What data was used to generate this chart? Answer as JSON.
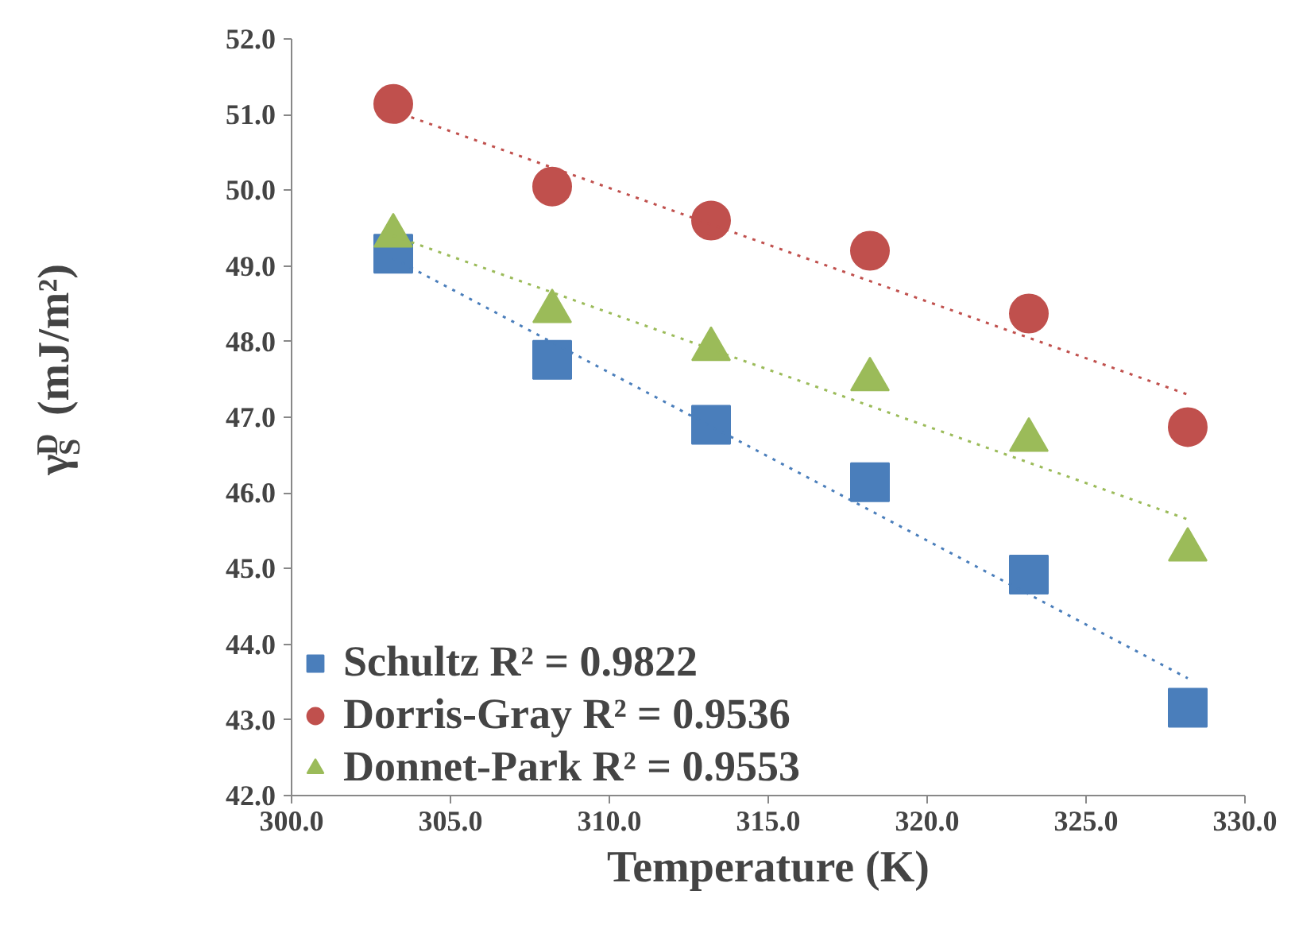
{
  "chart_data": {
    "type": "scatter",
    "xlabel": "Temperature (K)",
    "ylabel": "γ$_{S}$$^{D}$ (mJ/m²)",
    "xlim": [
      300,
      330
    ],
    "ylim": [
      42,
      52
    ],
    "xticks": [
      {
        "value": 300,
        "label": "300.0"
      },
      {
        "value": 305,
        "label": "305.0"
      },
      {
        "value": 310,
        "label": "310.0"
      },
      {
        "value": 315,
        "label": "315.0"
      },
      {
        "value": 320,
        "label": "320.0"
      },
      {
        "value": 325,
        "label": "325.0"
      },
      {
        "value": 330,
        "label": "330.0"
      }
    ],
    "yticks": [
      {
        "value": 42,
        "label": "42.0"
      },
      {
        "value": 43,
        "label": "43.0"
      },
      {
        "value": 44,
        "label": "44.0"
      },
      {
        "value": 45,
        "label": "45.0"
      },
      {
        "value": 46,
        "label": "46.0"
      },
      {
        "value": 47,
        "label": "47.0"
      },
      {
        "value": 48,
        "label": "48.0"
      },
      {
        "value": 49,
        "label": "49.0"
      },
      {
        "value": 50,
        "label": "50.0"
      },
      {
        "value": 51,
        "label": "51.0"
      },
      {
        "value": 52,
        "label": "52.0"
      }
    ],
    "x": [
      303.2,
      308.2,
      313.2,
      318.2,
      323.2,
      328.2
    ],
    "grid": false,
    "legend": "bottom left",
    "series": [
      {
        "name": "Schultz R² = 0.9822",
        "color": "#4a7ebb",
        "marker": "square",
        "values": [
          49.16,
          47.76,
          46.9,
          46.14,
          44.92,
          43.16
        ]
      },
      {
        "name": "Dorris-Gray R² = 0.9536",
        "color": "#c0504d",
        "marker": "circle",
        "values": [
          51.14,
          50.05,
          49.6,
          49.2,
          48.37,
          46.87
        ]
      },
      {
        "name": "Donnet-Park R² = 0.9553",
        "color": "#9bbb59",
        "marker": "triangle",
        "values": [
          49.4,
          48.4,
          47.9,
          47.5,
          46.7,
          45.25
        ]
      },
      {
        "type": "line",
        "color": "#4a7ebb",
        "marker": "none",
        "line_style": "dotted",
        "values": [
          49.1,
          47.99,
          46.88,
          45.77,
          44.66,
          43.55
        ]
      },
      {
        "type": "line",
        "color": "#c0504d",
        "marker": "none",
        "line_style": "dotted",
        "values": [
          51.05,
          50.3,
          49.55,
          48.8,
          48.05,
          47.3
        ]
      },
      {
        "type": "line",
        "color": "#9bbb59",
        "marker": "none",
        "line_style": "dotted",
        "values": [
          49.4,
          48.65,
          47.9,
          47.15,
          46.4,
          45.65
        ]
      }
    ]
  }
}
